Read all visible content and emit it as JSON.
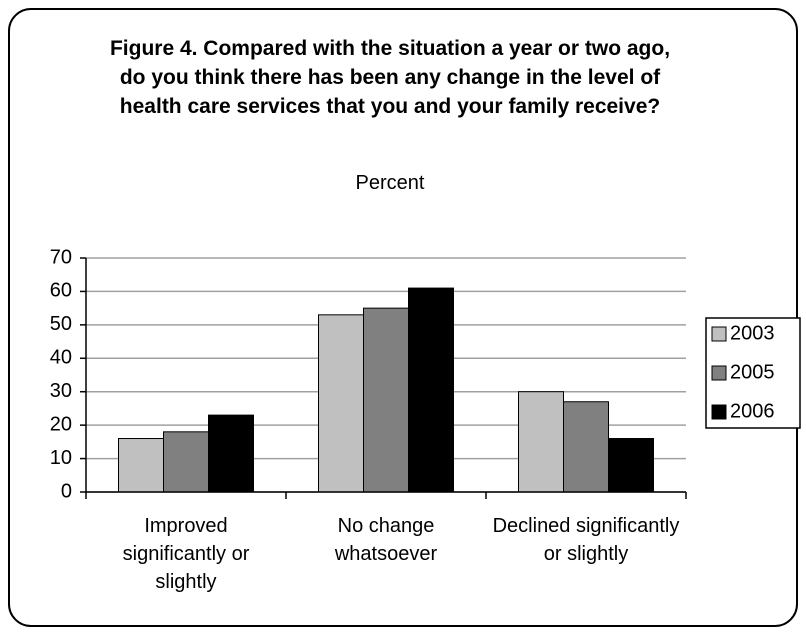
{
  "chart_data": {
    "type": "bar",
    "title": "Figure 4. Compared with the situation a year or two ago, do you think there has been any change in the level of health care services that you and your family receive?",
    "subtitle": "Percent",
    "categories": [
      "Improved significantly or slightly",
      "No change whatsoever",
      "Declined significantly or slightly"
    ],
    "series": [
      {
        "name": "2003",
        "color": "#c0c0c0",
        "values": [
          16,
          53,
          30
        ]
      },
      {
        "name": "2005",
        "color": "#808080",
        "values": [
          18,
          55,
          27
        ]
      },
      {
        "name": "2006",
        "color": "#000000",
        "values": [
          23,
          61,
          16
        ]
      }
    ],
    "ylim": [
      0,
      70
    ],
    "yticks": [
      0,
      10,
      20,
      30,
      40,
      50,
      60,
      70
    ],
    "grid": true,
    "legend": "right"
  }
}
